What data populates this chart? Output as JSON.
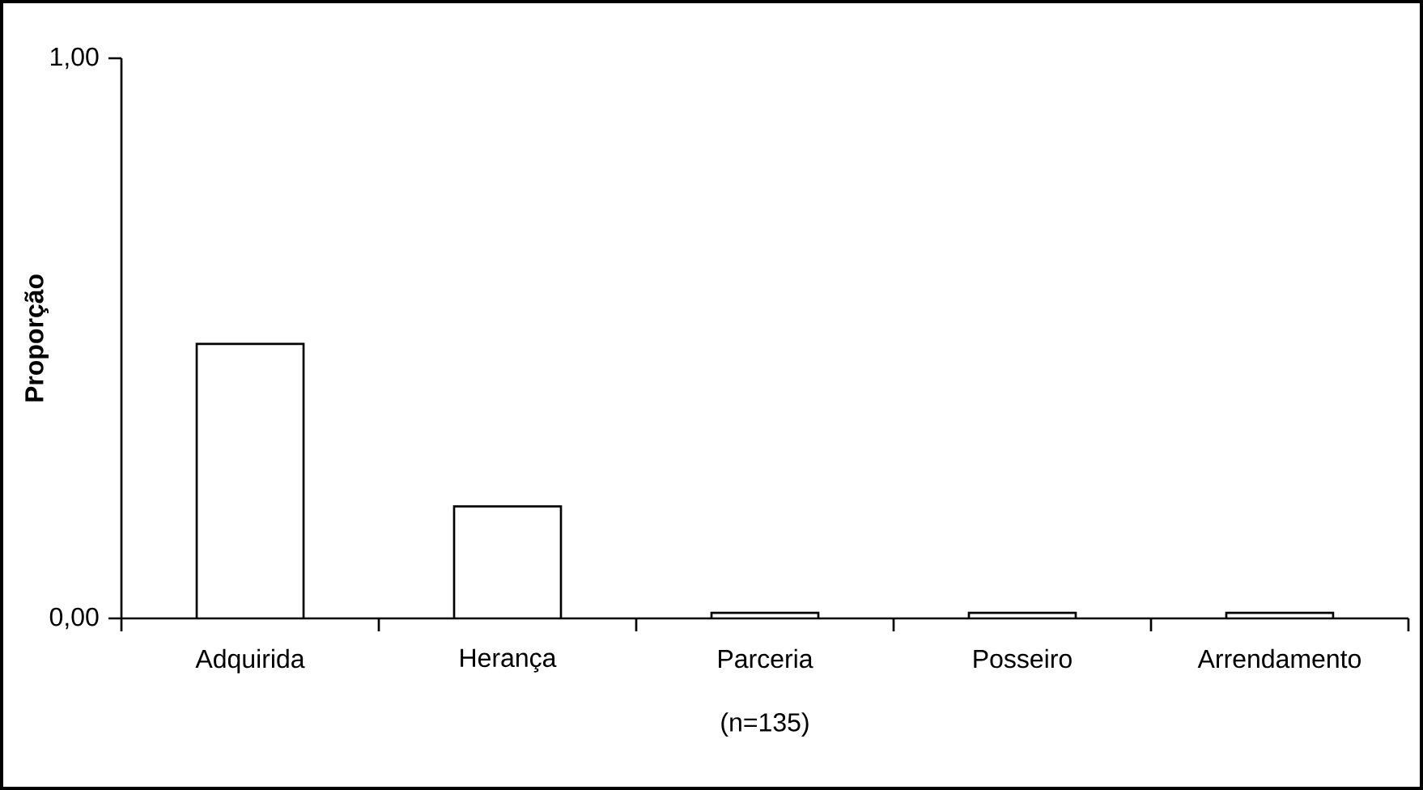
{
  "chart_data": {
    "type": "bar",
    "ylabel": "Proporção",
    "xlabel": "(n=135)",
    "categories": [
      "Adquirida",
      "Herança",
      "Parceria",
      "Posseiro",
      "Arrendamento"
    ],
    "values": [
      0.49,
      0.2,
      0.01,
      0.01,
      0.01
    ],
    "color": "#ffffff",
    "ylim": [
      0,
      1
    ],
    "yticks": [
      {
        "value": 0,
        "label": "0,00"
      },
      {
        "value": 1,
        "label": "1,00"
      }
    ]
  }
}
